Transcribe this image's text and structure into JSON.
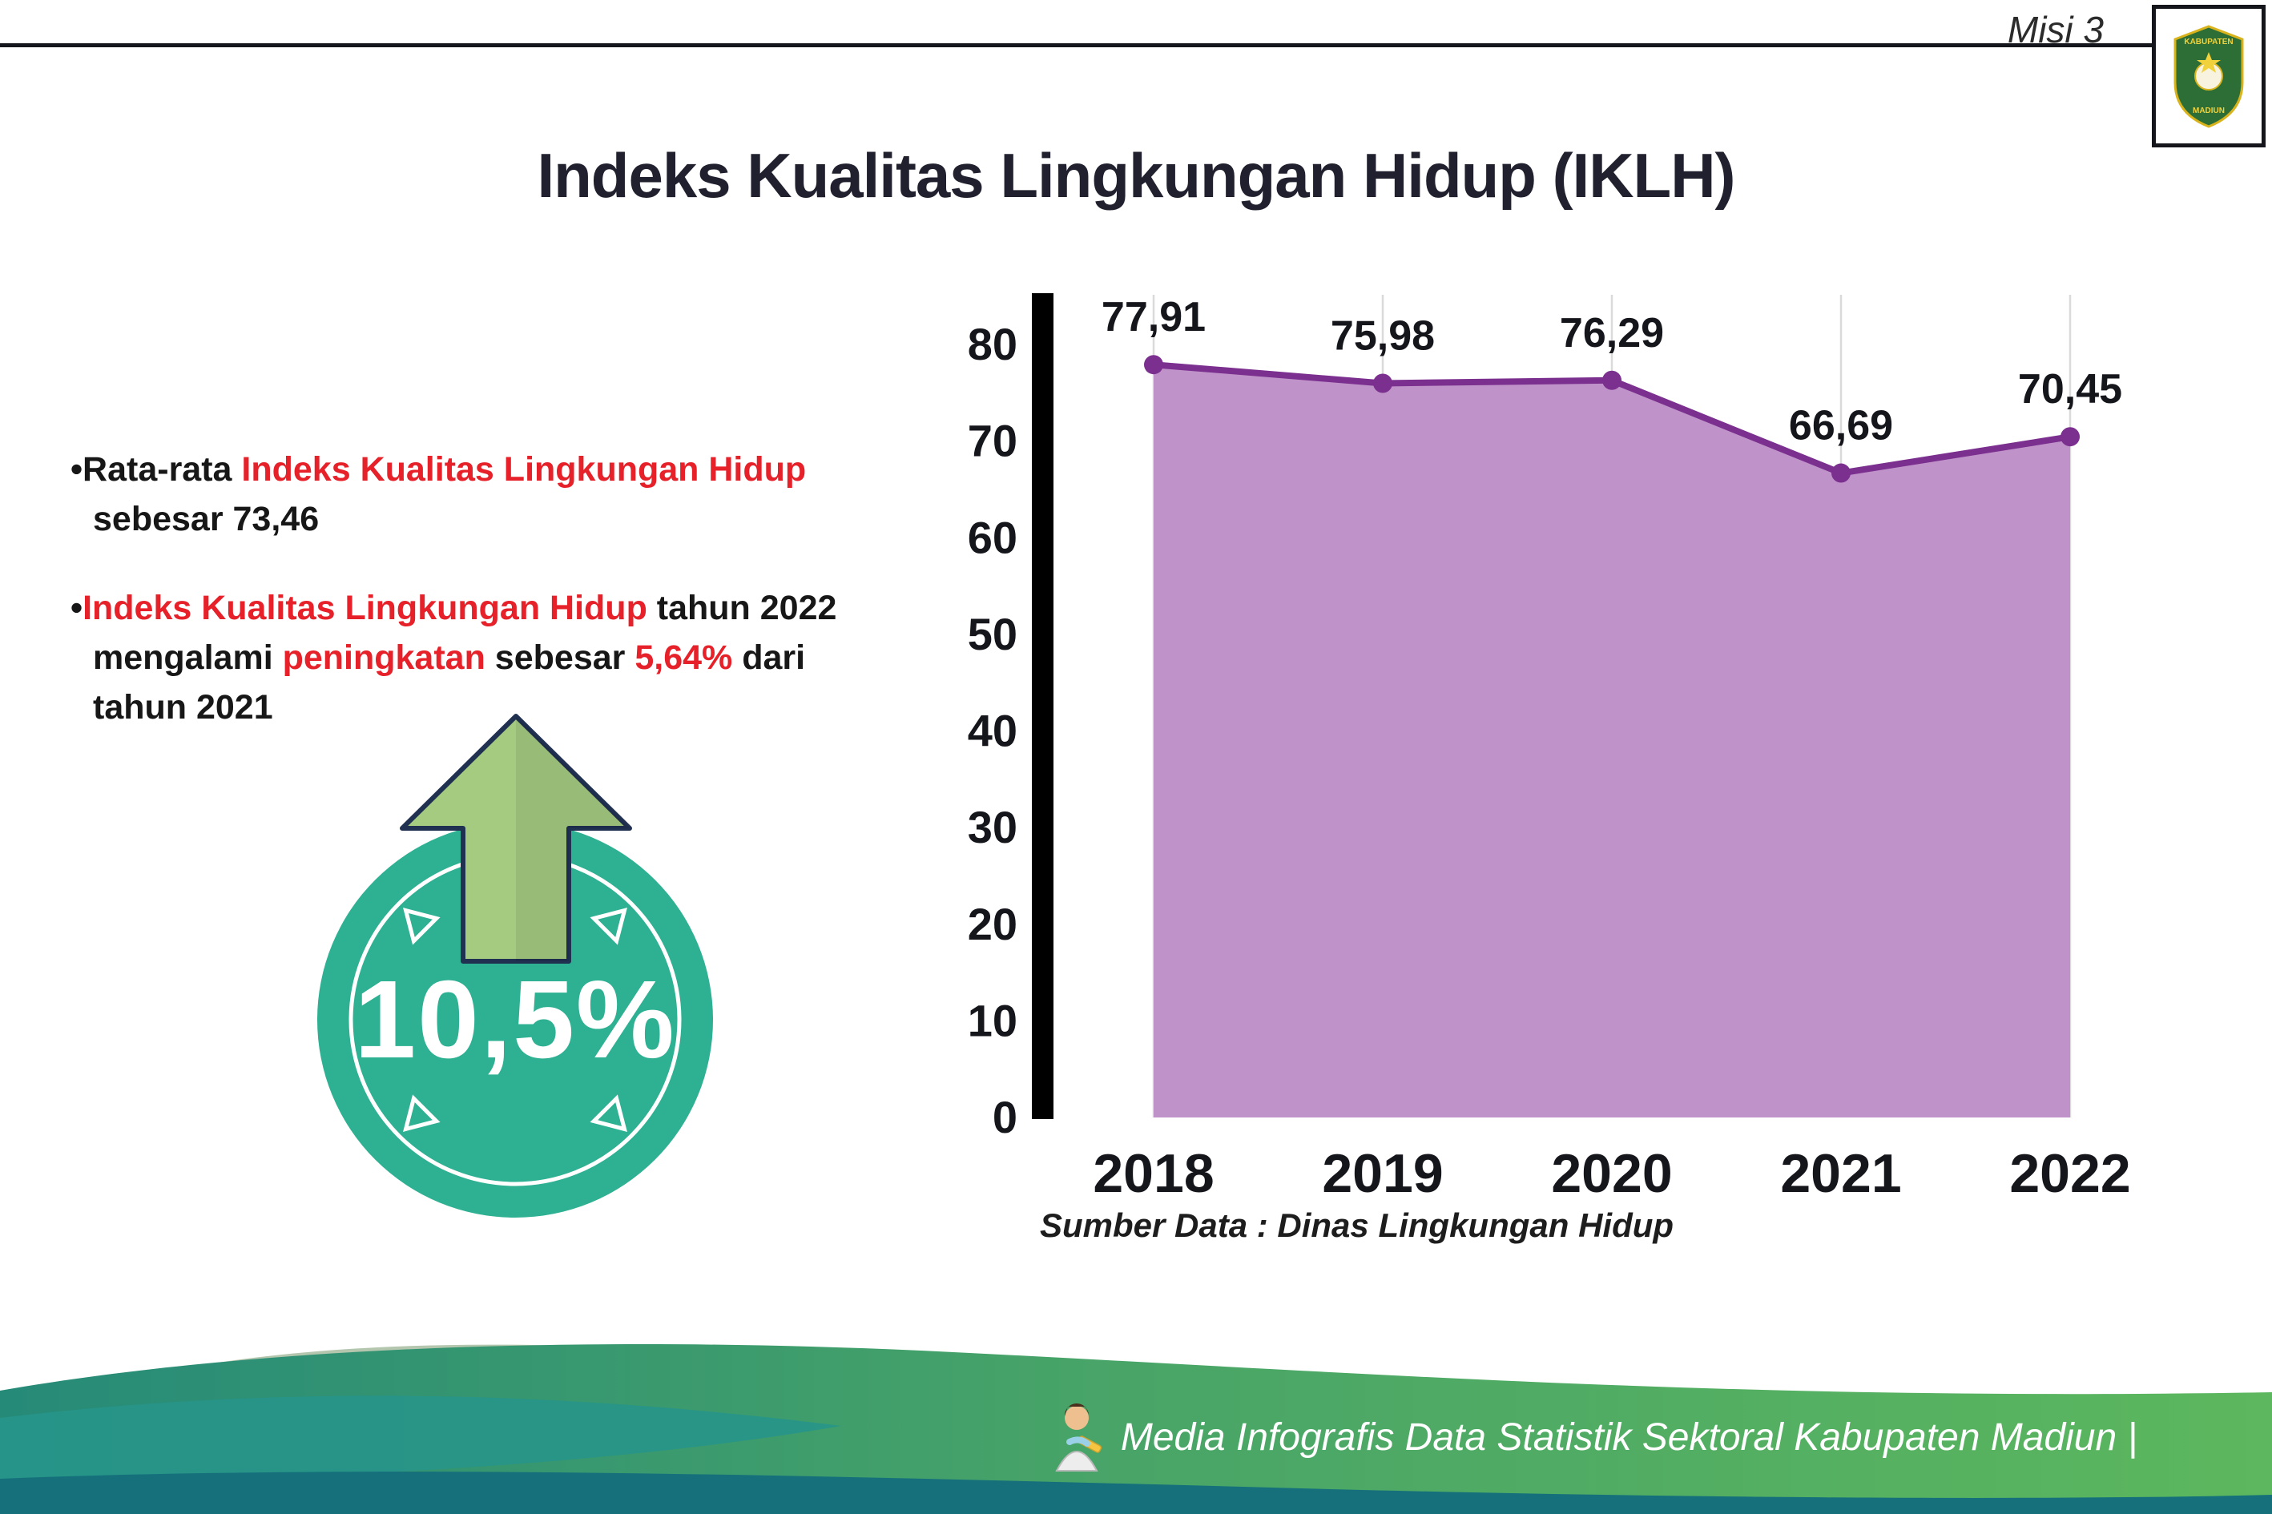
{
  "header": {
    "misi_label": "Misi 3",
    "title": "Indeks Kualitas Lingkungan Hidup (IKLH)",
    "logo": {
      "top_text": "KABUPATEN",
      "bottom_text": "MADIUN"
    }
  },
  "key_points": {
    "p1_black1": "•Rata-rata ",
    "p1_red": "Indeks Kualitas Lingkungan Hidup",
    "p1_black2": "sebesar 73,46",
    "p2_black0": "•",
    "p2_red1": "Indeks Kualitas Lingkungan Hidup",
    "p2_black1": " tahun 2022",
    "p2_black2": "mengalami ",
    "p2_red2": "peningkatan",
    "p2_black3": " sebesar ",
    "p2_red3": "5,64%",
    "p2_black4": " dari",
    "p2_black5": "tahun 2021"
  },
  "badge": {
    "value": "10,5%",
    "circle_color": "#2eb093",
    "arrow_color": "#a4cb80"
  },
  "chart_data": {
    "type": "area",
    "categories": [
      "2018",
      "2019",
      "2020",
      "2021",
      "2022"
    ],
    "values": [
      77.91,
      75.98,
      76.29,
      66.69,
      70.45
    ],
    "point_labels": [
      "77,91",
      "75,98",
      "76,29",
      "66,69",
      "70,45"
    ],
    "ylim": [
      0,
      80
    ],
    "yticks": [
      0,
      10,
      20,
      30,
      40,
      50,
      60,
      70,
      80
    ],
    "grid": "vertical",
    "legend": "none",
    "xlabel": "",
    "ylabel": "",
    "fill_color": "#bf93c9",
    "line_color": "#7b2f8e",
    "label_color": "#15151c",
    "source": "Sumber Data : Dinas Lingkungan Hidup"
  },
  "footer": {
    "credit": "Media Infografis Data Statistik Sektoral Kabupaten Madiun |"
  }
}
